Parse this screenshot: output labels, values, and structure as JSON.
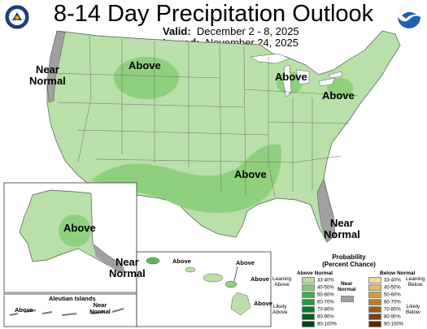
{
  "header": {
    "title": "8-14 Day Precipitation Outlook",
    "valid_label": "Valid:",
    "valid_value": "December 2 - 8, 2025",
    "issued_label": "Issued:",
    "issued_value": "November 24, 2025"
  },
  "logos": {
    "left": "doc-seal-icon",
    "right": "noaa-logo-icon"
  },
  "map_labels": {
    "west_near_normal": "Near\nNormal",
    "mountain_above": "Above",
    "great_lakes_above": "Above",
    "northeast_above": "Above",
    "south_above": "Above",
    "florida_near_normal": "Near\nNormal",
    "alaska_above": "Above",
    "alaska_near_normal": "Near\nNormal",
    "aleutian_title": "Aleutian Islands",
    "aleutian_near_normal": "Near\nNormal",
    "aleutian_above": "Above",
    "hawaii_kauai_above": "Above",
    "hawaii_above_1": "Above",
    "hawaii_above_2": "Above",
    "hawaii_above_3": "Above"
  },
  "legend": {
    "title": "Probability\n(Percent Chance)",
    "above_header": "Above Normal",
    "below_header": "Below Normal",
    "near_header": "Near\nNormal",
    "leaning_above": "Leaning\nAbove",
    "likely_above": "Likely\nAbove",
    "leaning_below": "Leaning\nBelow",
    "likely_below": "Likely\nBelow",
    "above_bins": [
      "33-40%",
      "40-50%",
      "50-60%",
      "60-70%",
      "70-80%",
      "80-90%",
      "90-100%"
    ],
    "below_bins": [
      "33-40%",
      "40-50%",
      "50-60%",
      "60-70%",
      "70-80%",
      "80-90%",
      "90-100%"
    ],
    "above_colors": [
      "#b3dea3",
      "#7ccd6e",
      "#42b04a",
      "#229a3a",
      "#0b7a2c",
      "#056020",
      "#024016"
    ],
    "below_colors": [
      "#f4d9a3",
      "#e8b86a",
      "#d89a40",
      "#c07a28",
      "#9e5c1a",
      "#7a4010",
      "#552a08"
    ],
    "near_color": "#a0a0a0"
  }
}
